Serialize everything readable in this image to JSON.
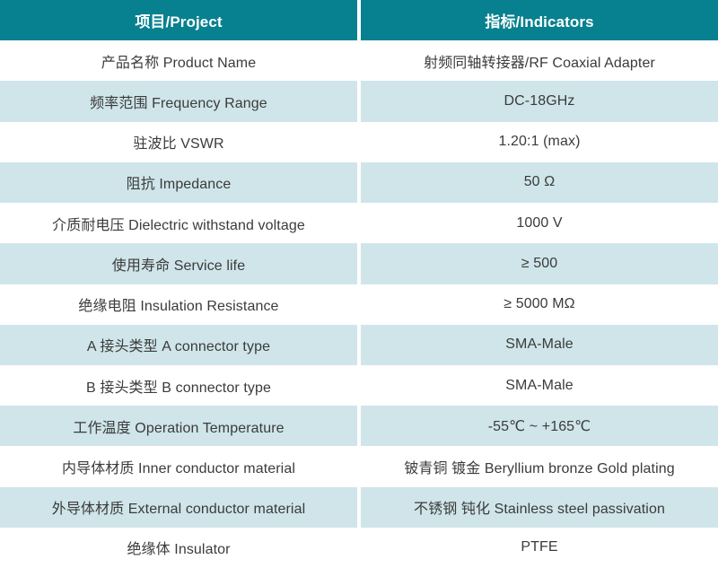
{
  "colors": {
    "header_bg": "#07818F",
    "header_text": "#FFFFFF",
    "row_bg": "#FFFFFF",
    "row_alt_bg": "#CFE5E9",
    "body_text": "#3B3B3B",
    "divider": "#FFFFFF"
  },
  "table": {
    "header": {
      "project": "项目/Project",
      "indicators": "指标/Indicators"
    },
    "rows": [
      {
        "project": "产品名称 Product Name",
        "indicator": "射频同轴转接器/RF Coaxial Adapter"
      },
      {
        "project": "频率范围 Frequency Range",
        "indicator": "DC-18GHz"
      },
      {
        "project": "驻波比 VSWR",
        "indicator": "1.20:1 (max)"
      },
      {
        "project": "阻抗 Impedance",
        "indicator": "50 Ω"
      },
      {
        "project": "介质耐电压 Dielectric withstand voltage",
        "indicator": "1000 V"
      },
      {
        "project": "使用寿命 Service life",
        "indicator": "≥ 500"
      },
      {
        "project": "绝缘电阻 Insulation Resistance",
        "indicator": "≥ 5000 MΩ"
      },
      {
        "project": "A 接头类型 A connector type",
        "indicator": "SMA-Male"
      },
      {
        "project": "B 接头类型 B connector type",
        "indicator": "SMA-Male"
      },
      {
        "project": "工作温度 Operation Temperature",
        "indicator": "-55℃ ~ +165℃"
      },
      {
        "project": "内导体材质 Inner conductor material",
        "indicator": "铍青铜 镀金 Beryllium bronze Gold plating"
      },
      {
        "project": "外导体材质 External conductor material",
        "indicator": "不锈钢 钝化 Stainless steel passivation"
      },
      {
        "project": "绝缘体 Insulator",
        "indicator": "PTFE"
      }
    ]
  }
}
